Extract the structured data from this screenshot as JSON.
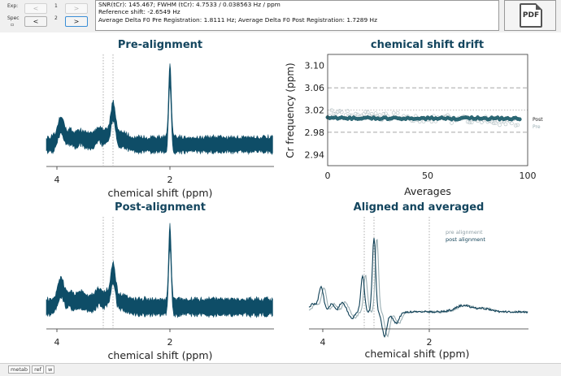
{
  "controls": {
    "exp_label": "Exp:",
    "spec_label": "Spec",
    "exp_prev": "<",
    "exp_next": ">",
    "spec_prev": "<",
    "spec_next": ">",
    "exp_number": "1",
    "spec_number": "2"
  },
  "info": {
    "line1": "SNR(tCr): 145.467; FWHM (tCr): 4.7533 / 0.038563 Hz / ppm",
    "line2": "Reference shift: -2.6549 Hz",
    "line3": "Average Delta F0 Pre Registration: 1.8111 Hz; Average Delta F0 Post Registration: 1.7289 Hz"
  },
  "pdf_button": {
    "label": "PDF",
    "icon": "pdf-file-icon"
  },
  "plots": {
    "pre": {
      "title": "Pre-alignment",
      "xlabel": "chemical shift (ppm)",
      "xticks": [
        "4",
        "2"
      ]
    },
    "post": {
      "title": "Post-alignment",
      "xlabel": "chemical shift (ppm)",
      "xticks": [
        "4",
        "2"
      ]
    },
    "drift": {
      "title": "chemical shift drift",
      "xlabel": "Averages",
      "ylabel": "Cr frequency (ppm)",
      "yticks": [
        "3.10",
        "3.06",
        "3.02",
        "2.98",
        "2.94"
      ],
      "xticks": [
        "0",
        "50",
        "100"
      ],
      "legend": {
        "post": "Post",
        "pre": "Pre"
      }
    },
    "aligned": {
      "title": "Aligned and averaged",
      "xlabel": "chemical shift (ppm)",
      "xticks": [
        "4",
        "2"
      ],
      "legend": {
        "pre": "pre alignment",
        "post": "post alignment"
      }
    }
  },
  "colors": {
    "spectrum": "#0e4d67",
    "post": "#2d6b78",
    "pre": "#9aaeb3",
    "title": "#13455e"
  },
  "chart_data": {
    "type": "scatter",
    "title": "chemical shift drift",
    "xlabel": "Averages",
    "ylabel": "Cr frequency (ppm)",
    "xlim": [
      0,
      100
    ],
    "ylim": [
      2.92,
      3.12
    ],
    "series": [
      {
        "name": "Post",
        "x_range": [
          0,
          96
        ],
        "y_approx": 3.005
      },
      {
        "name": "Pre",
        "x_range": [
          0,
          96
        ],
        "y_approx_range": [
          2.995,
          3.02
        ]
      }
    ],
    "reference_lines": [
      3.06,
      3.02,
      2.98
    ]
  },
  "tabs": [
    "metab",
    "ref",
    "w"
  ]
}
